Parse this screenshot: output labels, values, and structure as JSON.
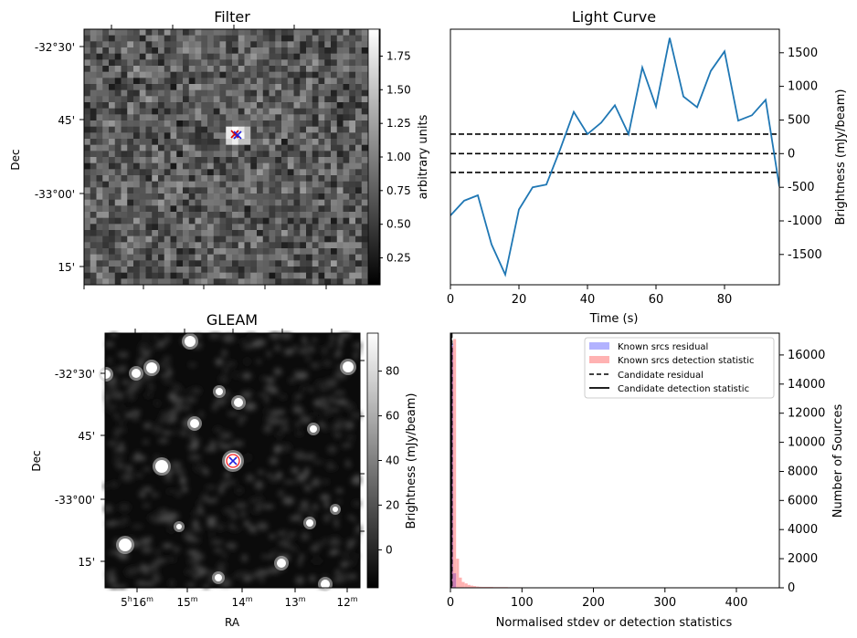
{
  "chart_data": [
    {
      "type": "heatmap",
      "title": "Filter",
      "xlabel": "",
      "ylabel": "Dec",
      "ytick_labels": [
        "-32°30'",
        "45'",
        "-33°00'",
        "15'"
      ],
      "colorbar": {
        "label": "arbitrary units",
        "range": [
          0.05,
          1.95
        ],
        "tick_labels": [
          "0.25",
          "0.50",
          "0.75",
          "1.00",
          "1.25",
          "1.50",
          "1.75"
        ],
        "tick_values": [
          0.25,
          0.5,
          0.75,
          1.0,
          1.25,
          1.5,
          1.75
        ]
      },
      "markers": [
        "red-x",
        "blue-x"
      ]
    },
    {
      "type": "line",
      "title": "Light Curve",
      "xlabel": "Time (s)",
      "ylabel": "Brightness (mJy/beam)",
      "xlim": [
        0,
        96
      ],
      "ylim": [
        -1950,
        1850
      ],
      "x_tick_labels": [
        "0",
        "20",
        "40",
        "60",
        "80"
      ],
      "x_tick_values": [
        0,
        20,
        40,
        60,
        80
      ],
      "y_tick_labels": [
        "-1500",
        "-1000",
        "-500",
        "0",
        "500",
        "1000",
        "1500"
      ],
      "y_tick_values": [
        -1500,
        -1000,
        -500,
        0,
        500,
        1000,
        1500
      ],
      "series": [
        {
          "name": "light curve",
          "color": "#1f77b4",
          "x": [
            0,
            4,
            8,
            12,
            16,
            20,
            24,
            28,
            32,
            36,
            40,
            44,
            48,
            52,
            56,
            60,
            64,
            68,
            72,
            76,
            80,
            84,
            88,
            92,
            96
          ],
          "y": [
            -920,
            -700,
            -620,
            -1350,
            -1800,
            -830,
            -500,
            -460,
            60,
            620,
            290,
            460,
            720,
            290,
            1280,
            700,
            1720,
            850,
            690,
            1230,
            1520,
            490,
            570,
            800,
            -490
          ]
        }
      ],
      "hlines": [
        290,
        0,
        -280
      ]
    },
    {
      "type": "heatmap",
      "title": "GLEAM",
      "xlabel": "RA",
      "ylabel": "Dec",
      "ytick_labels": [
        "-32°30'",
        "45'",
        "-33°00'",
        "15'"
      ],
      "xtick_labels": [
        {
          "main": "5",
          "sup1": "h",
          "mid": "16",
          "sup2": "m"
        },
        {
          "main": "15",
          "sup1": "m",
          "mid": "",
          "sup2": ""
        },
        {
          "main": "14",
          "sup1": "m",
          "mid": "",
          "sup2": ""
        },
        {
          "main": "13",
          "sup1": "m",
          "mid": "",
          "sup2": ""
        },
        {
          "main": "12",
          "sup1": "m",
          "mid": "",
          "sup2": ""
        }
      ],
      "colorbar": {
        "label": "Brightness (mJy/beam)",
        "range": [
          -17,
          97
        ],
        "tick_labels": [
          "0",
          "20",
          "40",
          "60",
          "80"
        ],
        "tick_values": [
          0,
          20,
          40,
          60,
          80
        ]
      },
      "markers": [
        "red-circle",
        "blue-x"
      ]
    },
    {
      "type": "bar",
      "title": "",
      "xlabel": "Normalised stdev or detection statistics",
      "ylabel": "Number of Sources",
      "xlim": [
        0,
        460
      ],
      "ylim": [
        0,
        17500
      ],
      "x_tick_labels": [
        "0",
        "100",
        "200",
        "300",
        "400"
      ],
      "x_tick_values": [
        0,
        100,
        200,
        300,
        400
      ],
      "y_tick_labels": [
        "0",
        "2000",
        "4000",
        "6000",
        "8000",
        "10000",
        "12000",
        "14000",
        "16000"
      ],
      "y_tick_values": [
        0,
        2000,
        4000,
        6000,
        8000,
        10000,
        12000,
        14000,
        16000
      ],
      "series": [
        {
          "name": "Known srcs residual",
          "color": "#0000ff",
          "bin_edges": [
            0,
            4,
            8
          ],
          "values": [
            16800,
            1000
          ]
        },
        {
          "name": "Known srcs detection statistic",
          "color": "#ff0000",
          "bin_edges": [
            0,
            4,
            8,
            12,
            16,
            20,
            24,
            28,
            32,
            36,
            40,
            44,
            60,
            80,
            100,
            140,
            160,
            200,
            270,
            430
          ],
          "values": [
            16600,
            17100,
            2000,
            700,
            400,
            300,
            200,
            150,
            120,
            90,
            70,
            60,
            50,
            40,
            30,
            20,
            15,
            10,
            10
          ]
        }
      ],
      "vlines": [
        {
          "name": "Candidate residual",
          "x": 1.5,
          "style": "dashed"
        },
        {
          "name": "Candidate detection statistic",
          "x": 0.8,
          "style": "solid"
        }
      ],
      "legend_position": "top-right",
      "legend_entries": [
        "Known srcs residual",
        "Known srcs detection statistic",
        "Candidate residual",
        "Candidate detection statistic"
      ]
    }
  ]
}
